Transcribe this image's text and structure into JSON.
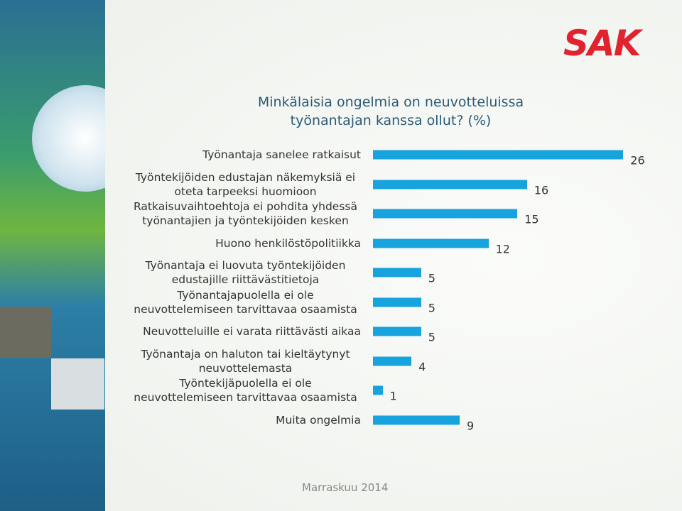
{
  "logo": "SAK",
  "footer": "Marraskuu 2014",
  "chart_data": {
    "type": "bar",
    "orientation": "horizontal",
    "title": "Minkälaisia ongelmia on neuvotteluissa työnantajan kanssa ollut? (%)",
    "categories": [
      "Työnantaja sanelee ratkaisut",
      "Työntekijöiden edustajan näkemyksiä ei oteta tarpeeksi huomioon",
      "Ratkaisuvaihtoehtoja ei pohdita yhdessä työnantajien ja työntekijöiden kesken",
      "Huono henkilöstöpolitiikka",
      "Työnantaja ei luovuta työntekijöiden edustajille riittävästitietoja",
      "Työnantajapuolella ei ole neuvottelemiseen tarvittavaa osaamista",
      "Neuvotteluille ei varata riittävästi aikaa",
      "Työnantaja on haluton tai kieltäytynyt neuvottelemasta",
      "Työntekijäpuolella ei ole neuvottelemiseen tarvittavaa osaamista",
      "Muita ongelmia"
    ],
    "values": [
      26,
      16,
      15,
      12,
      5,
      5,
      5,
      4,
      1,
      9
    ],
    "color": "#17a3dd"
  }
}
